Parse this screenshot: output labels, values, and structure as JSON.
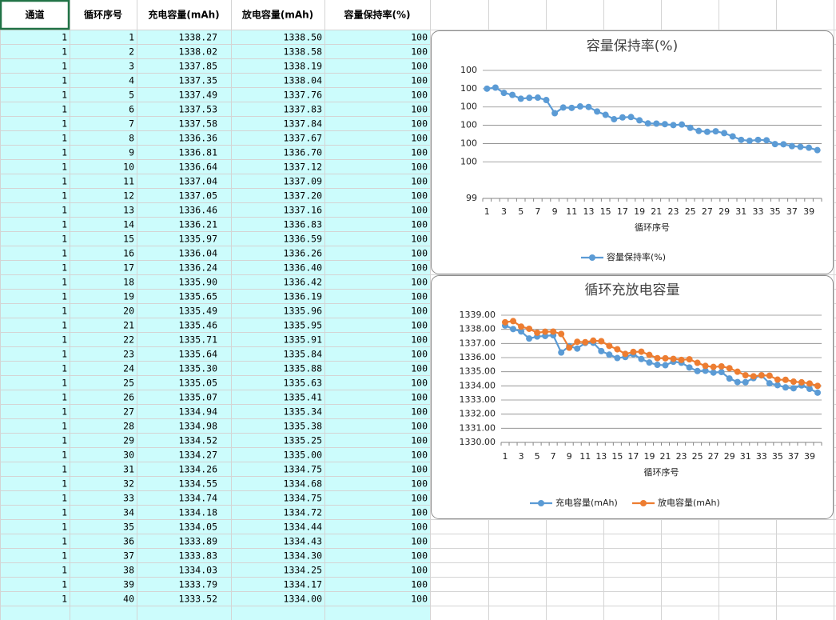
{
  "table": {
    "header": [
      "通道",
      "循环序号",
      "充电容量(mAh)",
      "放电容量(mAh)",
      "容量保持率(%)"
    ],
    "rows": [
      [
        1,
        1,
        "1338.27",
        "1338.50",
        100
      ],
      [
        1,
        2,
        "1338.02",
        "1338.58",
        100
      ],
      [
        1,
        3,
        "1337.85",
        "1338.19",
        100
      ],
      [
        1,
        4,
        "1337.35",
        "1338.04",
        100
      ],
      [
        1,
        5,
        "1337.49",
        "1337.76",
        100
      ],
      [
        1,
        6,
        "1337.53",
        "1337.83",
        100
      ],
      [
        1,
        7,
        "1337.58",
        "1337.84",
        100
      ],
      [
        1,
        8,
        "1336.36",
        "1337.67",
        100
      ],
      [
        1,
        9,
        "1336.81",
        "1336.70",
        100
      ],
      [
        1,
        10,
        "1336.64",
        "1337.12",
        100
      ],
      [
        1,
        11,
        "1337.04",
        "1337.09",
        100
      ],
      [
        1,
        12,
        "1337.05",
        "1337.20",
        100
      ],
      [
        1,
        13,
        "1336.46",
        "1337.16",
        100
      ],
      [
        1,
        14,
        "1336.21",
        "1336.83",
        100
      ],
      [
        1,
        15,
        "1335.97",
        "1336.59",
        100
      ],
      [
        1,
        16,
        "1336.04",
        "1336.26",
        100
      ],
      [
        1,
        17,
        "1336.24",
        "1336.40",
        100
      ],
      [
        1,
        18,
        "1335.90",
        "1336.42",
        100
      ],
      [
        1,
        19,
        "1335.65",
        "1336.19",
        100
      ],
      [
        1,
        20,
        "1335.49",
        "1335.96",
        100
      ],
      [
        1,
        21,
        "1335.46",
        "1335.95",
        100
      ],
      [
        1,
        22,
        "1335.71",
        "1335.91",
        100
      ],
      [
        1,
        23,
        "1335.64",
        "1335.84",
        100
      ],
      [
        1,
        24,
        "1335.30",
        "1335.88",
        100
      ],
      [
        1,
        25,
        "1335.05",
        "1335.63",
        100
      ],
      [
        1,
        26,
        "1335.07",
        "1335.41",
        100
      ],
      [
        1,
        27,
        "1334.94",
        "1335.34",
        100
      ],
      [
        1,
        28,
        "1334.98",
        "1335.38",
        100
      ],
      [
        1,
        29,
        "1334.52",
        "1335.25",
        100
      ],
      [
        1,
        30,
        "1334.27",
        "1335.00",
        100
      ],
      [
        1,
        31,
        "1334.26",
        "1334.75",
        100
      ],
      [
        1,
        32,
        "1334.55",
        "1334.68",
        100
      ],
      [
        1,
        33,
        "1334.74",
        "1334.75",
        100
      ],
      [
        1,
        34,
        "1334.18",
        "1334.72",
        100
      ],
      [
        1,
        35,
        "1334.05",
        "1334.44",
        100
      ],
      [
        1,
        36,
        "1333.89",
        "1334.43",
        100
      ],
      [
        1,
        37,
        "1333.83",
        "1334.30",
        100
      ],
      [
        1,
        38,
        "1334.03",
        "1334.25",
        100
      ],
      [
        1,
        39,
        "1333.79",
        "1334.17",
        100
      ],
      [
        1,
        40,
        "1333.52",
        "1334.00",
        100
      ]
    ]
  },
  "chart_data": [
    {
      "type": "line",
      "title": "容量保持率(%)",
      "x_label": "循环序号",
      "categories": [
        1,
        null,
        3,
        null,
        5,
        null,
        7,
        null,
        9,
        null,
        11,
        null,
        13,
        null,
        15,
        null,
        17,
        null,
        19,
        null,
        21,
        null,
        23,
        null,
        25,
        null,
        27,
        null,
        29,
        null,
        31,
        null,
        33,
        null,
        35,
        null,
        37,
        null,
        39,
        null
      ],
      "series": [
        {
          "name": "容量保持率(%)",
          "color": "#5b9bd5",
          "values": [
            100.0,
            100.006,
            99.977,
            99.966,
            99.945,
            99.95,
            99.951,
            99.938,
            99.866,
            99.897,
            99.895,
            99.903,
            99.9,
            99.875,
            99.857,
            99.833,
            99.843,
            99.845,
            99.827,
            99.81,
            99.809,
            99.806,
            99.801,
            99.804,
            99.786,
            99.769,
            99.764,
            99.767,
            99.757,
            99.739,
            99.72,
            99.715,
            99.72,
            99.718,
            99.697,
            99.696,
            99.686,
            99.682,
            99.677,
            99.664
          ]
        }
      ],
      "ylim": [
        99.4,
        100.1
      ],
      "yticks": [
        {
          "value": 99.4,
          "label": "99"
        },
        {
          "value": 99.6,
          "label": "100"
        },
        {
          "value": 99.7,
          "label": "100"
        },
        {
          "value": 99.8,
          "label": "100"
        },
        {
          "value": 99.9,
          "label": "100"
        },
        100,
        {
          "value": 100.1,
          "label": "100"
        }
      ],
      "grid": true,
      "legend": "bottom"
    },
    {
      "type": "line",
      "title": "循环充放电容量",
      "x_label": "循环序号",
      "categories": [
        1,
        null,
        3,
        null,
        5,
        null,
        7,
        null,
        9,
        null,
        11,
        null,
        13,
        null,
        15,
        null,
        17,
        null,
        19,
        null,
        21,
        null,
        23,
        null,
        25,
        null,
        27,
        null,
        29,
        null,
        31,
        null,
        33,
        null,
        35,
        null,
        37,
        null,
        39,
        null
      ],
      "series": [
        {
          "name": "充电容量(mAh)",
          "color": "#5b9bd5",
          "values": [
            1338.27,
            1338.02,
            1337.85,
            1337.35,
            1337.49,
            1337.53,
            1337.58,
            1336.36,
            1336.81,
            1336.64,
            1337.04,
            1337.05,
            1336.46,
            1336.21,
            1335.97,
            1336.04,
            1336.24,
            1335.9,
            1335.65,
            1335.49,
            1335.46,
            1335.71,
            1335.64,
            1335.3,
            1335.05,
            1335.07,
            1334.94,
            1334.98,
            1334.52,
            1334.27,
            1334.26,
            1334.55,
            1334.74,
            1334.18,
            1334.05,
            1333.89,
            1333.83,
            1334.03,
            1333.79,
            1333.52
          ]
        },
        {
          "name": "放电容量(mAh)",
          "color": "#ed7d31",
          "values": [
            1338.5,
            1338.58,
            1338.19,
            1338.04,
            1337.76,
            1337.83,
            1337.84,
            1337.67,
            1336.7,
            1337.12,
            1337.09,
            1337.2,
            1337.16,
            1336.83,
            1336.59,
            1336.26,
            1336.4,
            1336.42,
            1336.19,
            1335.96,
            1335.95,
            1335.91,
            1335.84,
            1335.88,
            1335.63,
            1335.41,
            1335.34,
            1335.38,
            1335.25,
            1335.0,
            1334.75,
            1334.68,
            1334.75,
            1334.72,
            1334.44,
            1334.43,
            1334.3,
            1334.25,
            1334.17,
            1334.0
          ]
        }
      ],
      "ylim": [
        1330,
        1339
      ],
      "yticks": [
        {
          "value": 1330,
          "label": "1330.00"
        },
        {
          "value": 1331,
          "label": "1331.00"
        },
        {
          "value": 1332,
          "label": "1332.00"
        },
        {
          "value": 1333,
          "label": "1333.00"
        },
        {
          "value": 1334,
          "label": "1334.00"
        },
        {
          "value": 1335,
          "label": "1335.00"
        },
        {
          "value": 1336,
          "label": "1336.00"
        },
        {
          "value": 1337,
          "label": "1337.00"
        },
        {
          "value": 1338,
          "label": "1338.00"
        },
        {
          "value": 1339,
          "label": "1339.00"
        }
      ],
      "grid": true,
      "legend": "bottom"
    }
  ]
}
